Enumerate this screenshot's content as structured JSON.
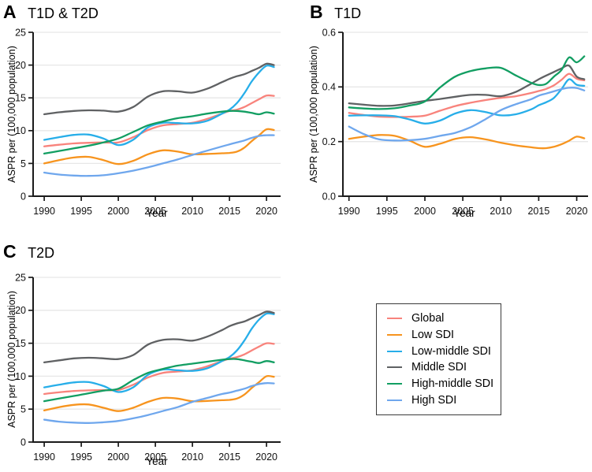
{
  "figure_type": "multi-panel line chart",
  "legend": {
    "items": [
      {
        "label": "Global",
        "color": "#F8837C"
      },
      {
        "label": "Low SDI",
        "color": "#F7941E"
      },
      {
        "label": "Low-middle SDI",
        "color": "#27AEE9"
      },
      {
        "label": "Middle SDI",
        "color": "#5F6163"
      },
      {
        "label": "High-middle SDI",
        "color": "#129E62"
      },
      {
        "label": "High SDI",
        "color": "#6FA7ED"
      }
    ]
  },
  "colors": {
    "grid": "#E7E7E7",
    "axis": "#1A1A1A",
    "background": "#FFFFFF"
  },
  "chart_data": [
    {
      "type": "line",
      "panel_label": "A",
      "title": "T1D & T2D",
      "xlabel": "Year",
      "ylabel": "ASPR per (100,000 population)",
      "x": [
        1990,
        1992,
        1994,
        1996,
        1998,
        2000,
        2002,
        2004,
        2006,
        2008,
        2010,
        2012,
        2014,
        2015,
        2016,
        2017,
        2018,
        2019,
        2020,
        2021
      ],
      "xticks": [
        1990,
        1995,
        2000,
        2005,
        2010,
        2015,
        2020
      ],
      "yticks": [
        0,
        5,
        10,
        15,
        20,
        25
      ],
      "ytick_labels": [
        "0",
        "5",
        "10",
        "15",
        "20",
        "25"
      ],
      "xlim": [
        1988.5,
        2021.9
      ],
      "ylim": [
        0,
        25
      ],
      "grid": "horizontal",
      "series": [
        {
          "name": "Global",
          "color": "#F8837C",
          "values": [
            7.6,
            7.85,
            8.05,
            8.15,
            8.2,
            8.2,
            9.0,
            10.1,
            10.8,
            11.0,
            11.2,
            11.8,
            12.6,
            13.0,
            13.2,
            13.6,
            14.2,
            14.8,
            15.35,
            15.3
          ]
        },
        {
          "name": "Low SDI",
          "color": "#F7941E",
          "values": [
            5.0,
            5.5,
            5.9,
            6.0,
            5.5,
            4.9,
            5.4,
            6.4,
            7.0,
            6.8,
            6.4,
            6.45,
            6.55,
            6.6,
            6.8,
            7.4,
            8.4,
            9.3,
            10.2,
            10.1
          ]
        },
        {
          "name": "Low-middle SDI",
          "color": "#27AEE9",
          "values": [
            8.6,
            9.0,
            9.35,
            9.4,
            8.8,
            7.8,
            8.6,
            10.5,
            11.2,
            11.15,
            11.1,
            11.5,
            12.6,
            13.2,
            14.2,
            15.7,
            17.5,
            18.9,
            19.9,
            19.7
          ]
        },
        {
          "name": "Middle SDI",
          "color": "#5F6163",
          "values": [
            12.5,
            12.8,
            13.0,
            13.1,
            13.05,
            12.9,
            13.6,
            15.2,
            16.0,
            16.0,
            15.8,
            16.4,
            17.4,
            17.9,
            18.3,
            18.6,
            19.1,
            19.6,
            20.2,
            20.0
          ]
        },
        {
          "name": "High-middle SDI",
          "color": "#129E62",
          "values": [
            6.5,
            6.9,
            7.3,
            7.7,
            8.2,
            8.8,
            9.8,
            10.8,
            11.4,
            11.9,
            12.2,
            12.6,
            12.9,
            13.0,
            13.0,
            12.9,
            12.7,
            12.5,
            12.8,
            12.6
          ]
        },
        {
          "name": "High SDI",
          "color": "#6FA7ED",
          "values": [
            3.6,
            3.3,
            3.15,
            3.1,
            3.2,
            3.5,
            3.9,
            4.4,
            5.0,
            5.6,
            6.3,
            6.95,
            7.6,
            7.9,
            8.2,
            8.5,
            8.9,
            9.2,
            9.3,
            9.3
          ]
        }
      ]
    },
    {
      "type": "line",
      "panel_label": "B",
      "title": "T1D",
      "xlabel": "Year",
      "ylabel": "ASPR per (100,000 population)",
      "x": [
        1990,
        1992,
        1994,
        1996,
        1998,
        2000,
        2002,
        2004,
        2006,
        2008,
        2010,
        2012,
        2014,
        2015,
        2016,
        2017,
        2018,
        2019,
        2020,
        2021
      ],
      "xticks": [
        1990,
        1995,
        2000,
        2005,
        2010,
        2015,
        2020
      ],
      "yticks": [
        0,
        0.2,
        0.4,
        0.6
      ],
      "ytick_labels": [
        "0.0",
        "0.2",
        "0.4",
        "0.6"
      ],
      "xlim": [
        1989.2,
        2021.5
      ],
      "ylim": [
        0,
        0.6
      ],
      "grid": "horizontal",
      "series": [
        {
          "name": "Global",
          "color": "#F8837C",
          "values": [
            0.305,
            0.297,
            0.291,
            0.29,
            0.291,
            0.295,
            0.313,
            0.33,
            0.342,
            0.352,
            0.36,
            0.366,
            0.378,
            0.385,
            0.393,
            0.406,
            0.426,
            0.448,
            0.43,
            0.424
          ]
        },
        {
          "name": "Low SDI",
          "color": "#F7941E",
          "values": [
            0.21,
            0.218,
            0.224,
            0.221,
            0.203,
            0.181,
            0.192,
            0.21,
            0.216,
            0.208,
            0.196,
            0.186,
            0.179,
            0.176,
            0.176,
            0.181,
            0.19,
            0.203,
            0.218,
            0.212
          ]
        },
        {
          "name": "Low-middle SDI",
          "color": "#27AEE9",
          "values": [
            0.295,
            0.296,
            0.296,
            0.293,
            0.281,
            0.266,
            0.277,
            0.303,
            0.315,
            0.308,
            0.296,
            0.3,
            0.318,
            0.333,
            0.344,
            0.36,
            0.392,
            0.428,
            0.408,
            0.404
          ]
        },
        {
          "name": "Middle SDI",
          "color": "#5F6163",
          "values": [
            0.34,
            0.335,
            0.331,
            0.332,
            0.34,
            0.349,
            0.356,
            0.364,
            0.371,
            0.371,
            0.366,
            0.382,
            0.412,
            0.428,
            0.442,
            0.455,
            0.468,
            0.478,
            0.438,
            0.428
          ]
        },
        {
          "name": "High-middle SDI",
          "color": "#129E62",
          "values": [
            0.325,
            0.321,
            0.319,
            0.322,
            0.332,
            0.347,
            0.398,
            0.438,
            0.458,
            0.468,
            0.47,
            0.442,
            0.415,
            0.407,
            0.412,
            0.438,
            0.462,
            0.508,
            0.49,
            0.512
          ]
        },
        {
          "name": "High SDI",
          "color": "#6FA7ED",
          "values": [
            0.255,
            0.227,
            0.208,
            0.204,
            0.205,
            0.21,
            0.221,
            0.232,
            0.252,
            0.282,
            0.315,
            0.337,
            0.355,
            0.368,
            0.376,
            0.384,
            0.392,
            0.397,
            0.396,
            0.387
          ]
        }
      ]
    },
    {
      "type": "line",
      "panel_label": "C",
      "title": "T2D",
      "xlabel": "Year",
      "ylabel": "ASPR per (100,000 population)",
      "x": [
        1990,
        1992,
        1994,
        1996,
        1998,
        2000,
        2002,
        2004,
        2006,
        2008,
        2010,
        2012,
        2014,
        2015,
        2016,
        2017,
        2018,
        2019,
        2020,
        2021
      ],
      "xticks": [
        1990,
        1995,
        2000,
        2005,
        2010,
        2015,
        2020
      ],
      "yticks": [
        0,
        5,
        10,
        15,
        20,
        25
      ],
      "ytick_labels": [
        "0",
        "5",
        "10",
        "15",
        "20",
        "25"
      ],
      "xlim": [
        1988.5,
        2021.9
      ],
      "ylim": [
        0,
        25
      ],
      "grid": "horizontal",
      "series": [
        {
          "name": "Global",
          "color": "#F8837C",
          "values": [
            7.3,
            7.55,
            7.75,
            7.85,
            7.9,
            7.9,
            8.7,
            9.8,
            10.5,
            10.7,
            10.9,
            11.5,
            12.3,
            12.65,
            12.9,
            13.3,
            13.9,
            14.5,
            15.0,
            14.9
          ]
        },
        {
          "name": "Low SDI",
          "color": "#F7941E",
          "values": [
            4.8,
            5.3,
            5.65,
            5.7,
            5.2,
            4.7,
            5.2,
            6.1,
            6.7,
            6.6,
            6.2,
            6.25,
            6.35,
            6.4,
            6.6,
            7.2,
            8.2,
            9.1,
            10.0,
            9.9
          ]
        },
        {
          "name": "Low-middle SDI",
          "color": "#27AEE9",
          "values": [
            8.3,
            8.7,
            9.05,
            9.1,
            8.5,
            7.6,
            8.3,
            10.2,
            11.0,
            10.9,
            10.8,
            11.2,
            12.3,
            12.9,
            13.9,
            15.4,
            17.2,
            18.6,
            19.5,
            19.4
          ]
        },
        {
          "name": "Middle SDI",
          "color": "#5F6163",
          "values": [
            12.1,
            12.4,
            12.7,
            12.8,
            12.7,
            12.6,
            13.2,
            14.8,
            15.5,
            15.6,
            15.4,
            16.0,
            17.0,
            17.6,
            18.0,
            18.3,
            18.8,
            19.3,
            19.8,
            19.6
          ]
        },
        {
          "name": "High-middle SDI",
          "color": "#129E62",
          "values": [
            6.2,
            6.6,
            7.0,
            7.4,
            7.8,
            8.1,
            9.4,
            10.5,
            11.1,
            11.6,
            11.9,
            12.2,
            12.5,
            12.6,
            12.6,
            12.4,
            12.2,
            12.0,
            12.3,
            12.1
          ]
        },
        {
          "name": "High SDI",
          "color": "#6FA7ED",
          "values": [
            3.4,
            3.1,
            2.95,
            2.9,
            3.0,
            3.2,
            3.6,
            4.1,
            4.7,
            5.3,
            6.1,
            6.7,
            7.3,
            7.5,
            7.8,
            8.1,
            8.5,
            8.8,
            8.95,
            8.9
          ]
        }
      ]
    }
  ]
}
